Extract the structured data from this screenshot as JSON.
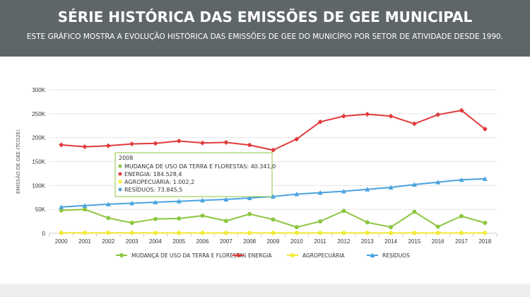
{
  "header": {
    "title": "SÉRIE HISTÓRICA DAS EMISSÕES DE GEE MUNICIPAL",
    "subtitle": "ESTE GRÁFICO MOSTRA A EVOLUÇÃO HISTÓRICA DAS EMISSÕES DE GEE DO MUNICÍPIO POR SETOR DE ATIVIDADE DESDE 1990."
  },
  "chart_data": {
    "type": "line",
    "ylabel": "EMISSÃO DE GEE (TCO2E)",
    "ylim": [
      0,
      300000
    ],
    "yticks": [
      0,
      50000,
      100000,
      150000,
      200000,
      250000,
      300000
    ],
    "ytick_labels": [
      "0",
      "50K",
      "100K",
      "150K",
      "200K",
      "250K",
      "300K"
    ],
    "x": [
      "2000",
      "2001",
      "2002",
      "2003",
      "2004",
      "2005",
      "2006",
      "2007",
      "2008",
      "2009",
      "2010",
      "2011",
      "2012",
      "2013",
      "2014",
      "2015",
      "2016",
      "2017",
      "2018"
    ],
    "grid": "horizontal",
    "legend_position": "bottom",
    "series": [
      {
        "name": "MUDANÇA DE USO DA TERRA E FLORESTAS",
        "color": "#8dc63f",
        "marker": "circle",
        "values": [
          48000,
          50000,
          32000,
          22000,
          30000,
          31000,
          37000,
          26000,
          40341,
          29000,
          13000,
          25000,
          47000,
          23000,
          13000,
          45000,
          14000,
          36000,
          22000
        ]
      },
      {
        "name": "ENERGIA",
        "color": "#e03a3a",
        "marker": "diamond",
        "values": [
          185000,
          181000,
          183000,
          187000,
          188000,
          193000,
          189000,
          190000,
          184528,
          174000,
          197000,
          233000,
          245000,
          249000,
          245000,
          229000,
          248000,
          257000,
          218000
        ]
      },
      {
        "name": "AGROPECUÁRIA",
        "color": "#f2ea34",
        "marker": "circle",
        "values": [
          1100,
          1050,
          1030,
          1020,
          1010,
          1005,
          1003,
          1002,
          1002.2,
          1001,
          1000,
          1000,
          1000,
          1000,
          1000,
          1000,
          1000,
          1000,
          1000
        ]
      },
      {
        "name": "RESÍDUOS",
        "color": "#4aa3df",
        "marker": "triangle",
        "values": [
          55000,
          58000,
          61000,
          63000,
          65000,
          67000,
          69000,
          71000,
          73845.5,
          77000,
          82000,
          85000,
          88000,
          92000,
          96000,
          102000,
          107000,
          112000,
          114000
        ]
      }
    ],
    "tooltip": {
      "year": "2008",
      "rows": [
        {
          "label": "MUDANÇA DE USO DA TERRA E FLORESTAS: 40.341,0",
          "color": "#8dc63f"
        },
        {
          "label": "ENERGIA: 184.528,4",
          "color": "#e03a3a"
        },
        {
          "label": "AGROPECUÁRIA: 1.002,2",
          "color": "#f2ea34"
        },
        {
          "label": "RESÍDUOS: 73.845,5",
          "color": "#4aa3df"
        }
      ]
    }
  }
}
